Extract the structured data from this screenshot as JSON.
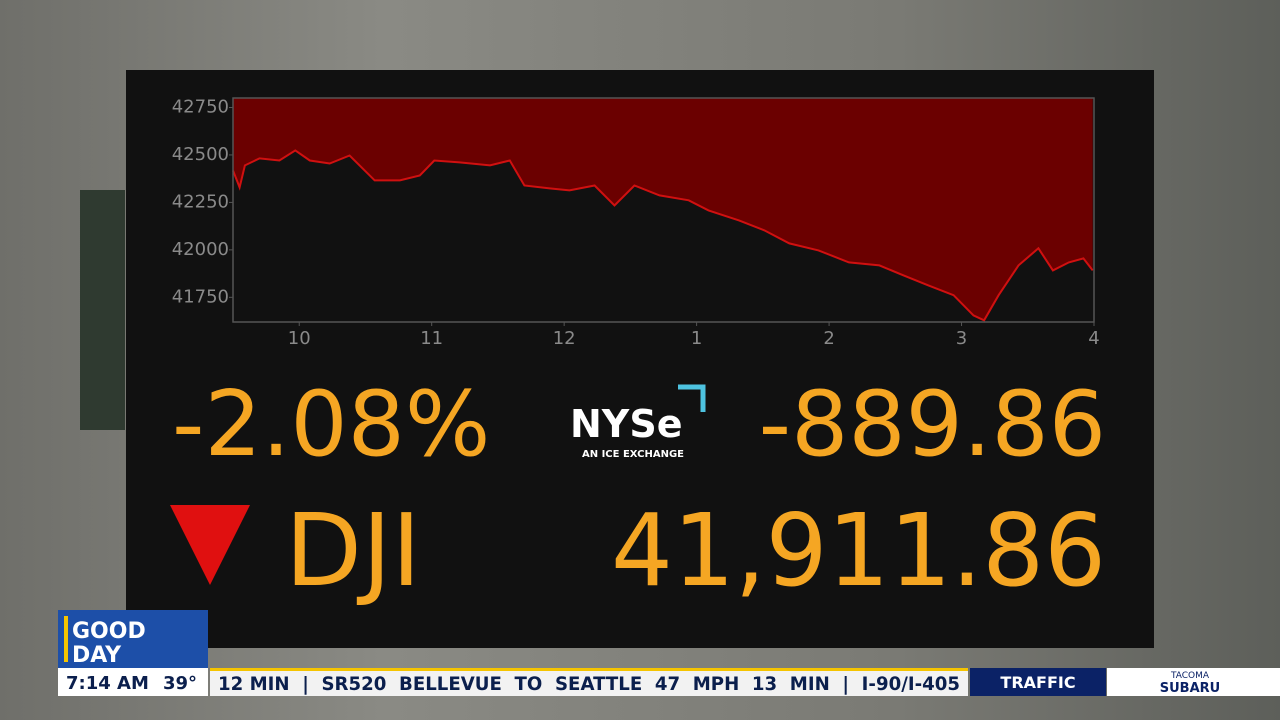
{
  "chart_data": {
    "type": "area",
    "x": [
      9.5,
      9.55,
      9.59,
      9.7,
      9.85,
      9.97,
      10.08,
      10.23,
      10.38,
      10.57,
      10.76,
      10.91,
      11.02,
      11.21,
      11.44,
      11.59,
      11.7,
      11.89,
      12.04,
      12.23,
      12.38,
      12.53,
      12.72,
      12.94,
      13.09,
      13.32,
      13.51,
      13.7,
      13.92,
      14.15,
      14.38,
      14.56,
      14.75,
      14.94,
      15.09,
      15.17,
      15.28,
      15.43,
      15.58,
      15.69,
      15.81,
      15.92,
      15.99
    ],
    "values": [
      42418,
      42329,
      42445,
      42482,
      42471,
      42524,
      42471,
      42455,
      42497,
      42366,
      42366,
      42392,
      42471,
      42461,
      42445,
      42471,
      42339,
      42324,
      42313,
      42339,
      42234,
      42339,
      42287,
      42261,
      42208,
      42155,
      42103,
      42034,
      41997,
      41934,
      41918,
      41866,
      41813,
      41761,
      41655,
      41629,
      41761,
      41918,
      42008,
      41892,
      41934,
      41955,
      41892
    ],
    "color": "#6b0000",
    "line_color": "#d01010",
    "xlim": [
      9.5,
      16
    ],
    "xticks": [
      10,
      11,
      12,
      {
        "value": 13,
        "label": "1"
      },
      {
        "value": 14,
        "label": "2"
      },
      {
        "value": 15,
        "label": "3"
      },
      {
        "value": 16,
        "label": "4"
      }
    ],
    "ylim": [
      41620,
      42800
    ],
    "yticks": [
      41750,
      42000,
      42250,
      42500,
      42750
    ]
  },
  "quote": {
    "percent_change": "-2.08%",
    "point_change": "-889.86",
    "symbol": "DJI",
    "price": "41,911.86"
  },
  "logo": {
    "name": "NYSe",
    "tagline": "AN ICE EXCHANGE"
  },
  "show": {
    "line1": "GOOD",
    "line2": "DAY",
    "time": "7:14 AM",
    "temperature": "39°"
  },
  "ticker": {
    "text": "12 MIN  |  SR520  BELLEVUE  TO  SEATTLE  47  MPH  13  MIN  |  I-90/I-405",
    "label": "TRAFFIC",
    "sponsor_line1": "TACOMA",
    "sponsor_line2": "SUBARU"
  }
}
